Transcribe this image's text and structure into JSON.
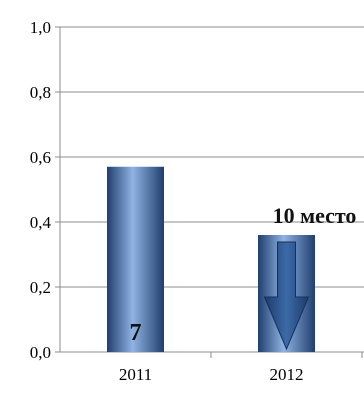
{
  "chart_data": {
    "type": "bar",
    "categories": [
      "2011",
      "2012"
    ],
    "values": [
      0.57,
      0.36
    ],
    "ylim": [
      0,
      1.0
    ],
    "yticks": [
      "0,0",
      "0,2",
      "0,4",
      "0,6",
      "0,8",
      "1,0"
    ],
    "ytick_values": [
      0,
      0.2,
      0.4,
      0.6,
      0.8,
      1.0
    ],
    "grid": true,
    "bar_labels": [
      "7",
      ""
    ],
    "annotation": "10 место",
    "colors": {
      "bar_dark": "#1f3f6e",
      "bar_light": "#8fb3e3",
      "arrow": "#2a4f84",
      "grid": "#8c8c8c"
    },
    "icons": [
      "down-arrow-icon"
    ]
  }
}
